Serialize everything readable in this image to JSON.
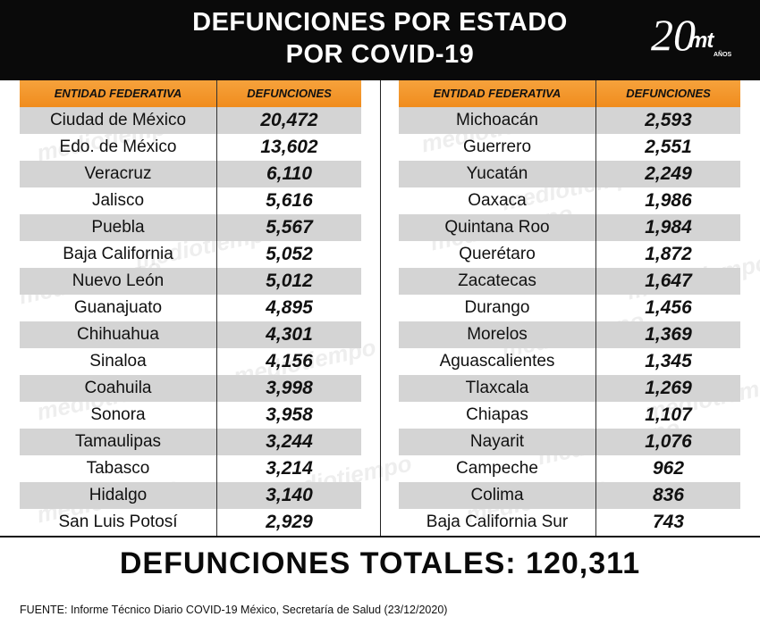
{
  "title": {
    "line1": "DEFUNCIONES POR ESTADO",
    "line2": "POR COVID-19"
  },
  "logo": {
    "number": "20",
    "brand": "mt",
    "sub": "AÑOS"
  },
  "watermark_text": "mediotiempo",
  "colors": {
    "header_bg": "#0a0a0a",
    "table_header": "#f08c1e",
    "row_alt": "#d4d4d4"
  },
  "headers": {
    "entity": "ENTIDAD FEDERATIVA",
    "deaths": "DEFUNCIONES"
  },
  "chart_data": {
    "type": "table",
    "title": "DEFUNCIONES POR ESTADO POR COVID-19",
    "columns": [
      "ENTIDAD FEDERATIVA",
      "DEFUNCIONES"
    ],
    "left_rows": [
      {
        "state": "Ciudad de México",
        "deaths": "20,472"
      },
      {
        "state": "Edo. de México",
        "deaths": "13,602"
      },
      {
        "state": "Veracruz",
        "deaths": "6,110"
      },
      {
        "state": "Jalisco",
        "deaths": "5,616"
      },
      {
        "state": "Puebla",
        "deaths": "5,567"
      },
      {
        "state": "Baja California",
        "deaths": "5,052"
      },
      {
        "state": "Nuevo León",
        "deaths": "5,012"
      },
      {
        "state": "Guanajuato",
        "deaths": "4,895"
      },
      {
        "state": "Chihuahua",
        "deaths": "4,301"
      },
      {
        "state": "Sinaloa",
        "deaths": "4,156"
      },
      {
        "state": "Coahuila",
        "deaths": "3,998"
      },
      {
        "state": "Sonora",
        "deaths": "3,958"
      },
      {
        "state": "Tamaulipas",
        "deaths": "3,244"
      },
      {
        "state": "Tabasco",
        "deaths": "3,214"
      },
      {
        "state": "Hidalgo",
        "deaths": "3,140"
      },
      {
        "state": "San Luis Potosí",
        "deaths": "2,929"
      }
    ],
    "right_rows": [
      {
        "state": "Michoacán",
        "deaths": "2,593"
      },
      {
        "state": "Guerrero",
        "deaths": "2,551"
      },
      {
        "state": "Yucatán",
        "deaths": "2,249"
      },
      {
        "state": "Oaxaca",
        "deaths": "1,986"
      },
      {
        "state": "Quintana Roo",
        "deaths": "1,984"
      },
      {
        "state": "Querétaro",
        "deaths": "1,872"
      },
      {
        "state": "Zacatecas",
        "deaths": "1,647"
      },
      {
        "state": "Durango",
        "deaths": "1,456"
      },
      {
        "state": "Morelos",
        "deaths": "1,369"
      },
      {
        "state": "Aguascalientes",
        "deaths": "1,345"
      },
      {
        "state": "Tlaxcala",
        "deaths": "1,269"
      },
      {
        "state": "Chiapas",
        "deaths": "1,107"
      },
      {
        "state": "Nayarit",
        "deaths": "1,076"
      },
      {
        "state": "Campeche",
        "deaths": "962"
      },
      {
        "state": "Colima",
        "deaths": "836"
      },
      {
        "state": "Baja California Sur",
        "deaths": "743"
      }
    ]
  },
  "total": "DEFUNCIONES TOTALES: 120,311",
  "source": "FUENTE: Informe Técnico Diario COVID-19 México, Secretaría de Salud (23/12/2020)"
}
